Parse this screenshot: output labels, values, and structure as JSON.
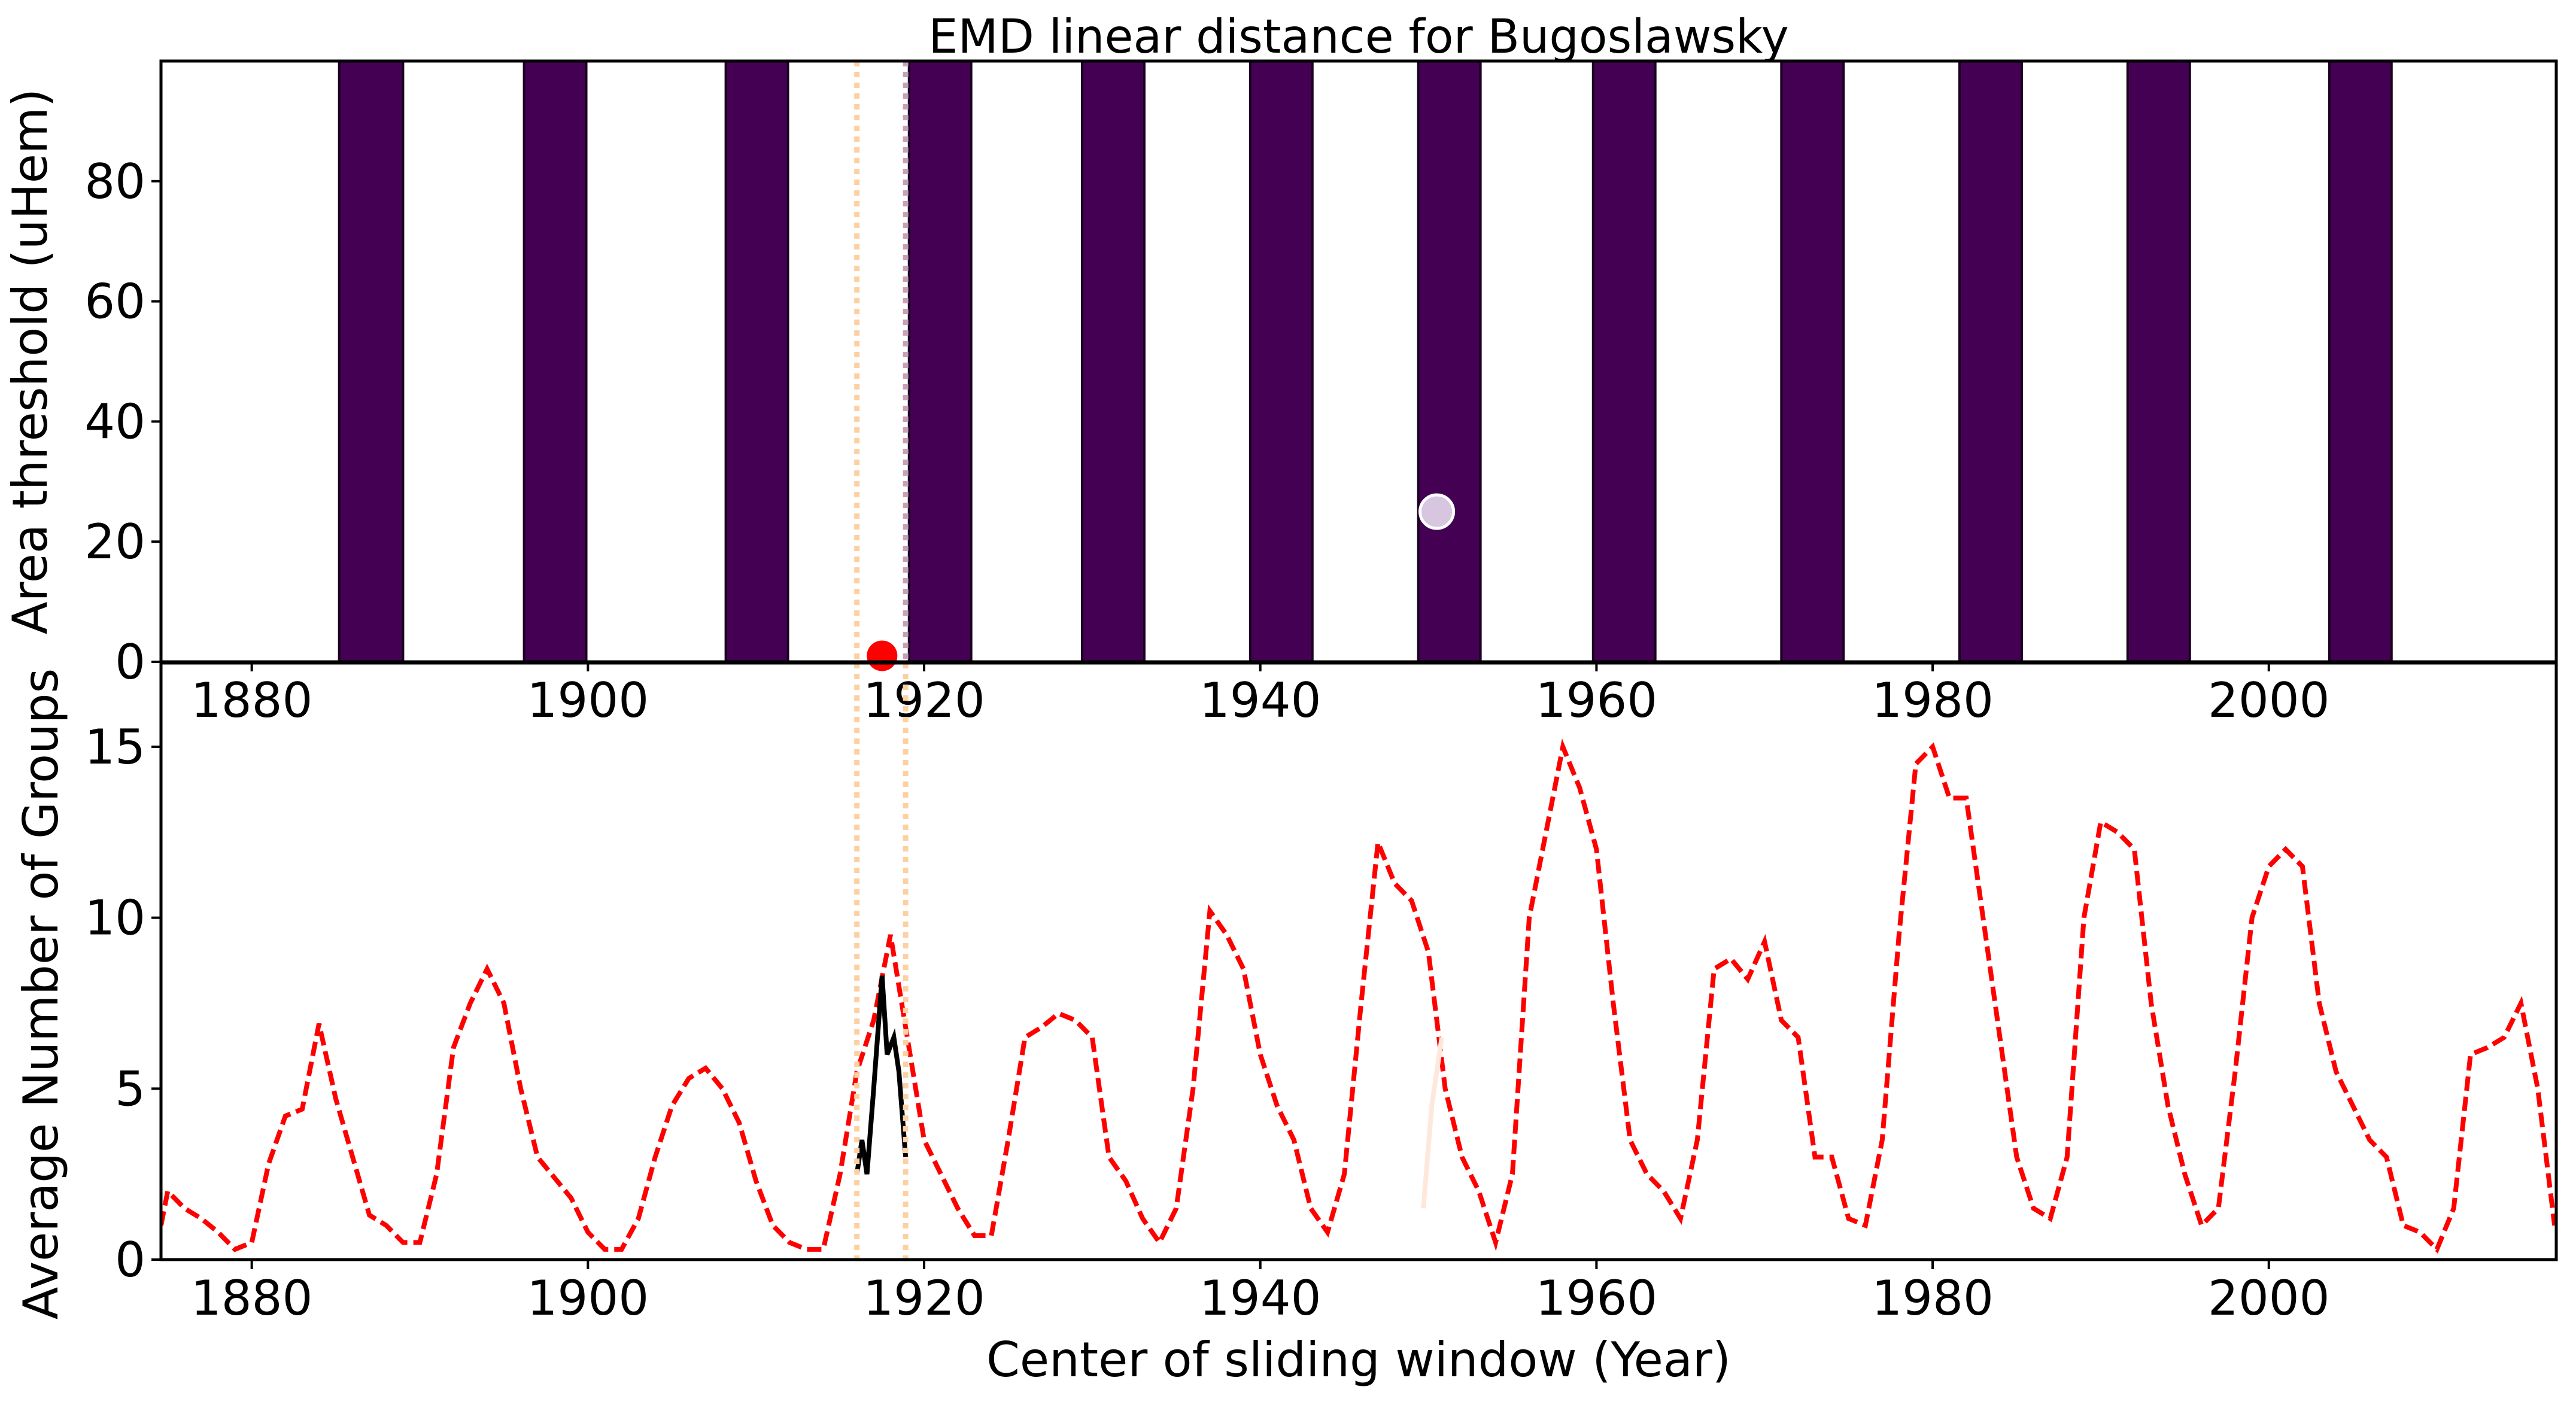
{
  "chart_data": [
    {
      "type": "bar",
      "title": "EMD linear distance for Bugoslawsky",
      "ylabel": "Area threshold (uHem)",
      "xlim": [
        1874.6,
        2017.1
      ],
      "ylim": [
        0,
        100
      ],
      "xticks": [
        1880,
        1900,
        1920,
        1940,
        1960,
        1980,
        2000
      ],
      "yticks": [
        0,
        20,
        40,
        60,
        80
      ],
      "color": "#440154",
      "x_start": [
        1885.2,
        1896.2,
        1908.2,
        1919.1,
        1929.4,
        1939.4,
        1949.4,
        1959.8,
        1971.0,
        1981.6,
        1991.6,
        2003.6
      ],
      "x_end": [
        1889.0,
        1899.9,
        1911.9,
        1922.8,
        1933.1,
        1943.1,
        1953.1,
        1963.5,
        1974.7,
        1985.3,
        1995.3,
        2007.3
      ],
      "values": [
        100,
        100,
        100,
        100,
        100,
        100,
        100,
        100,
        100,
        100,
        100,
        100
      ],
      "points": {
        "x": [
          1917.5,
          1950.5
        ],
        "values": [
          1,
          25
        ],
        "colors": [
          "#ff0000",
          "#d8c6e0"
        ]
      },
      "vlines": {
        "x": [
          1916.0,
          1918.9
        ],
        "colors": [
          "#fdd0a2",
          "#c8a0b8"
        ]
      }
    },
    {
      "type": "line",
      "ylabel": "Average Number of Groups",
      "xlabel": "Center of sliding window (Year)",
      "xlim": [
        1874.6,
        2017.1
      ],
      "ylim": [
        0,
        17.45
      ],
      "xticks": [
        1880,
        1900,
        1920,
        1940,
        1960,
        1980,
        2000
      ],
      "yticks": [
        0,
        5,
        10,
        15
      ],
      "series": [
        {
          "color": "#ff0000",
          "style": "dashed",
          "x": [
            1874.6,
            1875,
            1876,
            1877,
            1878,
            1879,
            1880,
            1881,
            1882,
            1883,
            1884,
            1885,
            1886,
            1887,
            1888,
            1889,
            1890,
            1891,
            1892,
            1893,
            1894,
            1895,
            1896,
            1897,
            1898,
            1899,
            1900,
            1901,
            1902,
            1903,
            1904,
            1905,
            1906,
            1907,
            1908,
            1909,
            1910,
            1911,
            1912,
            1913,
            1914,
            1915,
            1916,
            1917,
            1918,
            1919,
            1920,
            1921,
            1922,
            1923,
            1924,
            1925,
            1926,
            1927,
            1928,
            1929,
            1930,
            1931,
            1932,
            1933,
            1934,
            1935,
            1936,
            1937,
            1938,
            1939,
            1940,
            1941,
            1942,
            1943,
            1944,
            1945,
            1946,
            1947,
            1948,
            1949,
            1950,
            1951,
            1952,
            1953,
            1954,
            1955,
            1956,
            1957,
            1958,
            1959,
            1960,
            1961,
            1962,
            1963,
            1964,
            1965,
            1966,
            1967,
            1968,
            1969,
            1970,
            1971,
            1972,
            1973,
            1974,
            1975,
            1976,
            1977,
            1978,
            1979,
            1980,
            1981,
            1982,
            1983,
            1984,
            1985,
            1986,
            1987,
            1988,
            1989,
            1990,
            1991,
            1992,
            1993,
            1994,
            1995,
            1996,
            1997,
            1998,
            1999,
            2000,
            2001,
            2002,
            2003,
            2004,
            2005,
            2006,
            2007,
            2008,
            2009,
            2010,
            2011,
            2012,
            2013,
            2014,
            2015,
            2016,
            2017
          ],
          "values": [
            1.0,
            2.0,
            1.5,
            1.2,
            0.8,
            0.3,
            0.5,
            2.8,
            4.2,
            4.4,
            6.9,
            4.7,
            3.0,
            1.3,
            1.0,
            0.5,
            0.5,
            2.5,
            6.2,
            7.5,
            8.5,
            7.5,
            5.0,
            3.0,
            2.4,
            1.8,
            0.8,
            0.3,
            0.3,
            1.2,
            3.0,
            4.5,
            5.3,
            5.6,
            5.0,
            4.0,
            2.3,
            1.0,
            0.5,
            0.3,
            0.3,
            2.5,
            5.5,
            7.0,
            9.5,
            6.5,
            3.5,
            2.5,
            1.5,
            0.7,
            0.7,
            3.5,
            6.5,
            6.8,
            7.2,
            7.0,
            6.5,
            3.0,
            2.3,
            1.2,
            0.5,
            1.5,
            5.0,
            10.2,
            9.5,
            8.5,
            6.0,
            4.5,
            3.5,
            1.5,
            0.8,
            2.5,
            7.5,
            12.2,
            11.0,
            10.5,
            9.0,
            5.0,
            3.0,
            2.0,
            0.5,
            2.5,
            10.0,
            12.5,
            15.0,
            13.8,
            12.0,
            7.5,
            3.5,
            2.5,
            2.0,
            1.2,
            3.5,
            8.5,
            8.8,
            8.2,
            9.3,
            7.0,
            6.5,
            3.0,
            3.0,
            1.2,
            1.0,
            3.5,
            9.5,
            14.5,
            15.0,
            13.5,
            13.5,
            10.0,
            6.5,
            3.0,
            1.5,
            1.2,
            3.0,
            10.0,
            12.8,
            12.5,
            12.0,
            7.5,
            4.5,
            2.5,
            1.0,
            1.5,
            5.5,
            10.0,
            11.5,
            12.0,
            11.5,
            7.5,
            5.5,
            4.5,
            3.5,
            3.0,
            1.0,
            0.8,
            0.3,
            1.5,
            6.0,
            6.2,
            6.5,
            7.5,
            5.0,
            1.0
          ]
        },
        {
          "color": "#000000",
          "style": "solid",
          "x": [
            1916.0,
            1916.3,
            1916.6,
            1917.0,
            1917.5,
            1917.8,
            1918.2,
            1918.5,
            1918.9
          ],
          "values": [
            2.5,
            3.5,
            2.5,
            5.0,
            8.3,
            6.0,
            6.5,
            5.5,
            3.0
          ]
        },
        {
          "color": "#fee8dc",
          "style": "solid",
          "x": [
            1949.7,
            1950.2,
            1950.8
          ],
          "values": [
            1.5,
            4.5,
            6.5
          ]
        }
      ],
      "vlines": {
        "x": [
          1916.0,
          1918.9
        ],
        "colors": [
          "#fdd0a2",
          "#fdd0a2"
        ]
      }
    }
  ]
}
